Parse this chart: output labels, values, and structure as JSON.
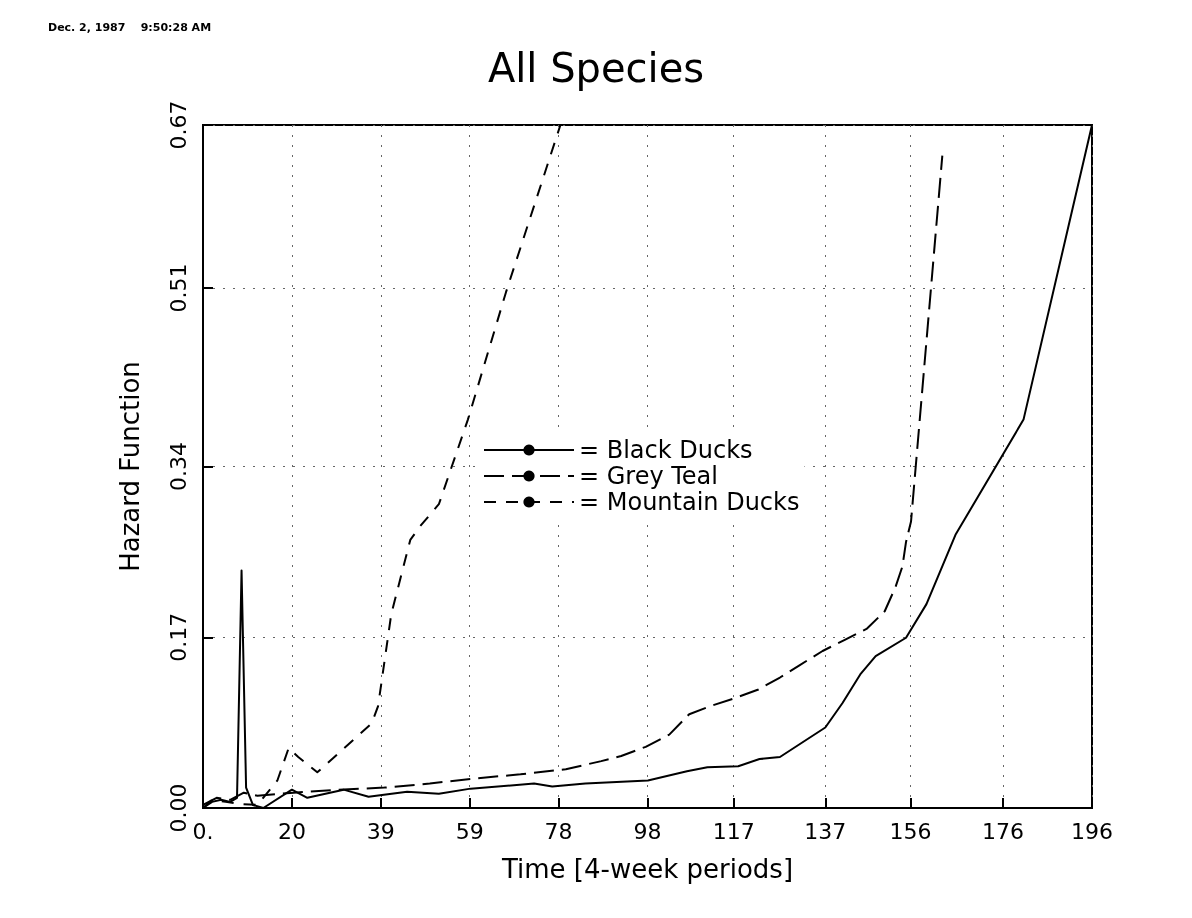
{
  "chart_data": {
    "type": "line",
    "title": "All Species",
    "xlabel": "Time [4-week periods]",
    "ylabel": "Hazard Function",
    "annotations": [
      "Dec. 2, 1987    9:50:28 AM"
    ],
    "xlim": [
      0,
      196
    ],
    "xticks": [
      {
        "value": 0,
        "label": "0."
      },
      {
        "value": 19.6,
        "label": "20"
      },
      {
        "value": 39.2,
        "label": "39"
      },
      {
        "value": 58.8,
        "label": "59"
      },
      {
        "value": 78.4,
        "label": "78"
      },
      {
        "value": 98,
        "label": "98"
      },
      {
        "value": 117,
        "label": "117"
      },
      {
        "value": 137.2,
        "label": "137"
      },
      {
        "value": 156,
        "label": "156"
      },
      {
        "value": 176.4,
        "label": "176"
      },
      {
        "value": 196,
        "label": "196"
      }
    ],
    "ylim": [
      0,
      0.67
    ],
    "yticks": [
      {
        "value": 0,
        "label": "0.00"
      },
      {
        "value": 0.1675,
        "label": "0.17"
      },
      {
        "value": 0.335,
        "label": "0.34"
      },
      {
        "value": 0.51,
        "label": "0.51"
      },
      {
        "value": 0.67,
        "label": "0.67"
      }
    ],
    "grid": true,
    "legend": "center",
    "marker": "none",
    "series": [
      {
        "name": "= Black Ducks",
        "color": "#000000",
        "line_style": "solid",
        "x": [
          0,
          2,
          4,
          6,
          7.5,
          8.5,
          9.5,
          11,
          13.3,
          19.6,
          23,
          31,
          36.5,
          45,
          52,
          59,
          73,
          77,
          84.3,
          98.1,
          106.7,
          111.2,
          118,
          122.7,
          127.2,
          137.2,
          141,
          144.9,
          148.3,
          155,
          159.5,
          165.9,
          180.9,
          196
        ],
        "values": [
          0,
          0.006,
          0.008,
          0.006,
          0.01,
          0.233,
          0.02,
          0.003,
          0,
          0.018,
          0.01,
          0.018,
          0.011,
          0.016,
          0.014,
          0.019,
          0.024,
          0.021,
          0.024,
          0.027,
          0.036,
          0.04,
          0.041,
          0.048,
          0.05,
          0.079,
          0.103,
          0.131,
          0.149,
          0.167,
          0.2,
          0.268,
          0.381,
          0.67
        ]
      },
      {
        "name": "= Grey Teal",
        "color": "#000000",
        "line_style": "dashed",
        "x": [
          0,
          3,
          6,
          9,
          12,
          20,
          30,
          40,
          50,
          60,
          70,
          80,
          87.8,
          92.2,
          97.6,
          102.8,
          107.2,
          111.9,
          117.4,
          122.3,
          127.2,
          131.5,
          136.6,
          141.5,
          146.4,
          150.3,
          152.7,
          154.2,
          155,
          156.1,
          163
        ],
        "values": [
          0.003,
          0.01,
          0.008,
          0.015,
          0.012,
          0.015,
          0.018,
          0.02,
          0.024,
          0.029,
          0.033,
          0.038,
          0.046,
          0.051,
          0.06,
          0.072,
          0.092,
          0.1,
          0.108,
          0.116,
          0.128,
          0.14,
          0.154,
          0.165,
          0.176,
          0.193,
          0.217,
          0.237,
          0.261,
          0.281,
          0.64
        ]
      },
      {
        "name": "= Mountain Ducks",
        "color": "#000000",
        "line_style": "dashed",
        "x": [
          0,
          2,
          5,
          8,
          12,
          16.4,
          18.9,
          21,
          25.2,
          37.2,
          38.6,
          41.5,
          45.7,
          47.8,
          52,
          58.4,
          66.8,
          78.8
        ],
        "values": [
          0,
          0.008,
          0.006,
          0.004,
          0.003,
          0.027,
          0.059,
          0.05,
          0.035,
          0.083,
          0.1,
          0.19,
          0.263,
          0.276,
          0.298,
          0.381,
          0.506,
          0.67
        ]
      }
    ]
  }
}
